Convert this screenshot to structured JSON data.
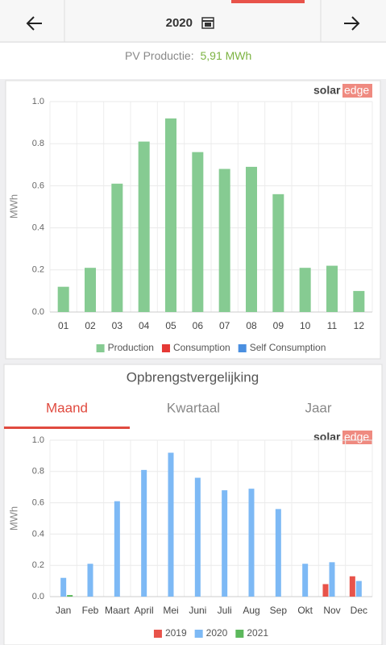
{
  "header": {
    "year": "2020"
  },
  "summary": {
    "label": "PV Productie:",
    "value": "5,91 MWh"
  },
  "brand": {
    "first": "solar",
    "second": "edge"
  },
  "comparison": {
    "title": "Opbrengstvergelijking",
    "tabs": [
      "Maand",
      "Kwartaal",
      "Jaar"
    ]
  },
  "chart_data": [
    {
      "type": "bar",
      "categories": [
        "01",
        "02",
        "03",
        "04",
        "05",
        "06",
        "07",
        "08",
        "09",
        "10",
        "11",
        "12"
      ],
      "series": [
        {
          "name": "Production",
          "color": "#86cb92",
          "values": [
            0.12,
            0.21,
            0.61,
            0.81,
            0.92,
            0.76,
            0.68,
            0.69,
            0.56,
            0.21,
            0.22,
            0.1
          ]
        },
        {
          "name": "Consumption",
          "color": "#e53935",
          "values": [
            null,
            null,
            null,
            null,
            null,
            null,
            null,
            null,
            null,
            null,
            null,
            null
          ]
        },
        {
          "name": "Self Consumption",
          "color": "#4a8fe0",
          "values": [
            null,
            null,
            null,
            null,
            null,
            null,
            null,
            null,
            null,
            null,
            null,
            null
          ]
        }
      ],
      "ylabel": "MWh",
      "ylim": [
        0,
        1
      ],
      "yticks": [
        {
          "value": 0,
          "label": "0.0"
        },
        0.2,
        0.4,
        0.6,
        0.8,
        {
          "value": 1,
          "label": "1.0"
        }
      ],
      "grid": true,
      "legend": "bottom"
    },
    {
      "type": "bar",
      "categories": [
        "Jan",
        "Feb",
        "Maart",
        "April",
        "Mei",
        "Juni",
        "Juli",
        "Aug",
        "Sep",
        "Okt",
        "Nov",
        "Dec"
      ],
      "series": [
        {
          "name": "2019",
          "color": "#e8534a",
          "values": [
            null,
            null,
            null,
            null,
            null,
            null,
            null,
            null,
            null,
            null,
            0.08,
            0.13
          ]
        },
        {
          "name": "2020",
          "color": "#7db9f5",
          "values": [
            0.12,
            0.21,
            0.61,
            0.81,
            0.92,
            0.76,
            0.68,
            0.69,
            0.56,
            0.21,
            0.22,
            0.1
          ]
        },
        {
          "name": "2021",
          "color": "#5cb85c",
          "values": [
            0.01,
            null,
            null,
            null,
            null,
            null,
            null,
            null,
            null,
            null,
            null,
            null
          ]
        }
      ],
      "ylabel": "MWh",
      "ylim": [
        0,
        1
      ],
      "yticks": [
        {
          "value": 0,
          "label": "0.0"
        },
        0.2,
        0.4,
        0.6,
        0.8,
        {
          "value": 1,
          "label": "1.0"
        }
      ],
      "grid": true,
      "legend": "bottom"
    }
  ]
}
